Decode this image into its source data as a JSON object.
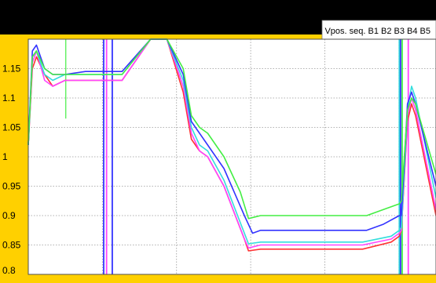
{
  "chart_data": {
    "type": "line",
    "title": "Vpos. seq. B1 B2 B3 B4 B5",
    "ylim": [
      0.8,
      1.2
    ],
    "yticks": [
      "0.8",
      "0.85",
      "0.9",
      "0.95",
      "1",
      "1.05",
      "1.1",
      "1.15"
    ],
    "xlim": [
      0,
      100
    ],
    "grid": true,
    "series": [
      {
        "color": "#ff3333",
        "values": [
          [
            0,
            1.02
          ],
          [
            1,
            1.15
          ],
          [
            2,
            1.17
          ],
          [
            4,
            1.14
          ],
          [
            6,
            1.12
          ],
          [
            9,
            1.13
          ],
          [
            14,
            1.13
          ],
          [
            23,
            1.13
          ],
          [
            30,
            1.22
          ],
          [
            34,
            1.22
          ],
          [
            38,
            1.11
          ],
          [
            40,
            1.03
          ],
          [
            42,
            1.01
          ],
          [
            44,
            1.0
          ],
          [
            48,
            0.95
          ],
          [
            53,
            0.86
          ],
          [
            54,
            0.84
          ],
          [
            57,
            0.843
          ],
          [
            82,
            0.843
          ],
          [
            89,
            0.855
          ],
          [
            91,
            0.865
          ],
          [
            91.5,
            0.875
          ],
          [
            93,
            1.06
          ],
          [
            94,
            1.09
          ],
          [
            95,
            1.07
          ],
          [
            100,
            0.9
          ]
        ]
      },
      {
        "color": "#ff44ff",
        "values": [
          [
            0,
            1.02
          ],
          [
            1,
            1.16
          ],
          [
            2,
            1.18
          ],
          [
            4,
            1.13
          ],
          [
            6,
            1.12
          ],
          [
            9,
            1.13
          ],
          [
            14,
            1.13
          ],
          [
            23,
            1.13
          ],
          [
            30,
            1.22
          ],
          [
            34,
            1.22
          ],
          [
            38,
            1.12
          ],
          [
            40,
            1.04
          ],
          [
            42,
            1.01
          ],
          [
            44,
            1.0
          ],
          [
            48,
            0.95
          ],
          [
            53,
            0.86
          ],
          [
            54,
            0.845
          ],
          [
            57,
            0.85
          ],
          [
            82,
            0.85
          ],
          [
            89,
            0.86
          ],
          [
            91,
            0.87
          ],
          [
            91.5,
            0.875
          ],
          [
            93,
            1.07
          ],
          [
            94,
            1.1
          ],
          [
            95,
            1.08
          ],
          [
            100,
            0.91
          ]
        ]
      },
      {
        "color": "#33dddd",
        "values": [
          [
            0,
            1.02
          ],
          [
            1,
            1.17
          ],
          [
            2,
            1.18
          ],
          [
            4,
            1.14
          ],
          [
            6,
            1.13
          ],
          [
            9,
            1.14
          ],
          [
            14,
            1.14
          ],
          [
            23,
            1.14
          ],
          [
            30,
            1.22
          ],
          [
            34,
            1.22
          ],
          [
            38,
            1.13
          ],
          [
            40,
            1.05
          ],
          [
            42,
            1.02
          ],
          [
            44,
            1.01
          ],
          [
            48,
            0.96
          ],
          [
            53,
            0.87
          ],
          [
            54,
            0.852
          ],
          [
            57,
            0.855
          ],
          [
            82,
            0.855
          ],
          [
            89,
            0.865
          ],
          [
            91,
            0.875
          ],
          [
            91.5,
            0.88
          ],
          [
            93,
            1.08
          ],
          [
            94,
            1.12
          ],
          [
            95,
            1.1
          ],
          [
            100,
            0.93
          ]
        ]
      },
      {
        "color": "#3333ff",
        "values": [
          [
            0,
            1.02
          ],
          [
            1,
            1.18
          ],
          [
            2,
            1.19
          ],
          [
            4,
            1.15
          ],
          [
            6,
            1.14
          ],
          [
            9,
            1.14
          ],
          [
            14,
            1.145
          ],
          [
            23,
            1.145
          ],
          [
            30,
            1.22
          ],
          [
            34,
            1.22
          ],
          [
            38,
            1.14
          ],
          [
            40,
            1.06
          ],
          [
            42,
            1.04
          ],
          [
            44,
            1.02
          ],
          [
            48,
            0.98
          ],
          [
            53,
            0.9
          ],
          [
            55,
            0.87
          ],
          [
            57,
            0.875
          ],
          [
            83,
            0.875
          ],
          [
            87,
            0.885
          ],
          [
            91,
            0.9
          ],
          [
            91.5,
            0.9
          ],
          [
            93,
            1.09
          ],
          [
            94,
            1.11
          ],
          [
            95,
            1.09
          ],
          [
            100,
            0.95
          ]
        ]
      },
      {
        "color": "#44ee44",
        "values": [
          [
            0,
            1.02
          ],
          [
            1,
            1.17
          ],
          [
            2,
            1.18
          ],
          [
            4,
            1.15
          ],
          [
            6,
            1.14
          ],
          [
            9,
            1.14
          ],
          [
            14,
            1.14
          ],
          [
            23,
            1.14
          ],
          [
            30,
            1.22
          ],
          [
            34,
            1.22
          ],
          [
            38,
            1.15
          ],
          [
            40,
            1.07
          ],
          [
            42,
            1.05
          ],
          [
            44,
            1.04
          ],
          [
            48,
            1.0
          ],
          [
            52,
            0.94
          ],
          [
            54,
            0.895
          ],
          [
            57,
            0.9
          ],
          [
            83,
            0.9
          ],
          [
            87,
            0.91
          ],
          [
            91,
            0.92
          ],
          [
            91.5,
            0.925
          ],
          [
            93,
            1.08
          ],
          [
            94,
            1.1
          ],
          [
            95,
            1.09
          ],
          [
            100,
            0.97
          ]
        ]
      }
    ],
    "vertical_markers": [
      {
        "color": "#3333ff",
        "x": 18.5
      },
      {
        "color": "#ff44ff",
        "x": 19.2
      },
      {
        "color": "#3333ff",
        "x": 20.6
      },
      {
        "color": "#33dddd",
        "x": 91.0
      },
      {
        "color": "#3333ff",
        "x": 91.3
      },
      {
        "color": "#44ee44",
        "x": 91.7
      },
      {
        "color": "#ff44ff",
        "x": 93.2
      }
    ],
    "transient_spike": {
      "color": "#44ee44",
      "x": 9.2,
      "ymin": 1.065,
      "ymax": 1.2
    }
  }
}
